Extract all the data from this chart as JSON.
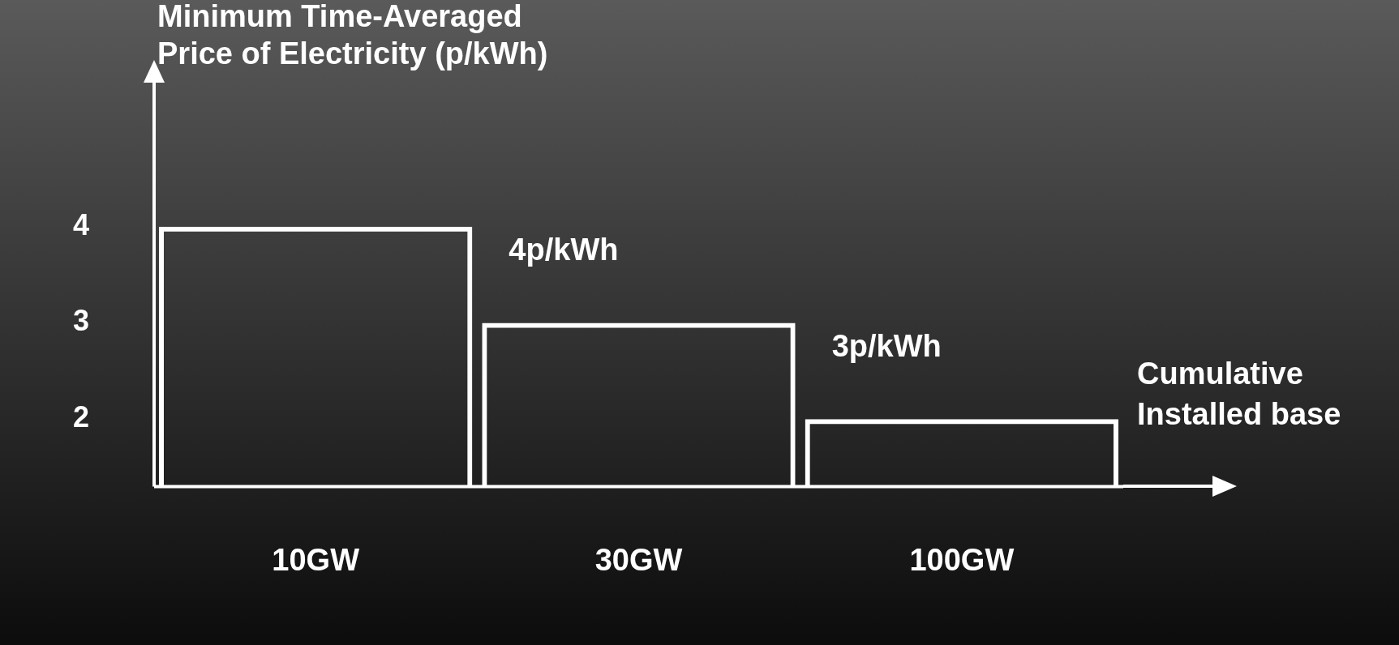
{
  "chart_data": {
    "type": "bar",
    "ylabel": "Minimum Time-Averaged Price of Electricity (p/kWh)",
    "xlabel": "Cumulative Installed base",
    "categories": [
      "10GW",
      "30GW",
      "100GW"
    ],
    "values": [
      4,
      3,
      2
    ],
    "color": "#ffffff",
    "ylim": [
      1.3,
      5.5
    ],
    "yticks": [
      2,
      3,
      4
    ],
    "grid": false,
    "legend": false,
    "annotations": [
      "4p/kWh",
      "3p/kWh"
    ]
  }
}
